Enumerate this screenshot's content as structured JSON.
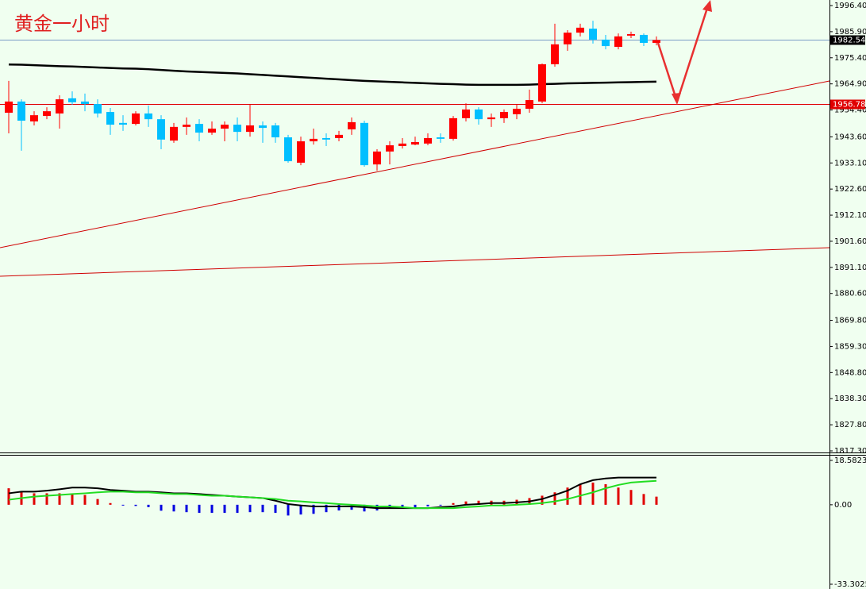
{
  "chart_data": [
    {
      "type": "candlestick",
      "title": "黄金一小时",
      "ylim": [
        1817.3,
        1996.4
      ],
      "yticks": [
        {
          "value": 1996.4,
          "label": "1996.40"
        },
        {
          "value": 1985.9,
          "label": "1985.90"
        },
        {
          "value": 1975.4,
          "label": "1975.40"
        },
        {
          "value": 1964.9,
          "label": "1964.90"
        },
        {
          "value": 1954.4,
          "label": "1954.40"
        },
        {
          "value": 1943.6,
          "label": "1943.60"
        },
        {
          "value": 1933.1,
          "label": "1933.10"
        },
        {
          "value": 1922.6,
          "label": "1922.60"
        },
        {
          "value": 1912.1,
          "label": "1912.10"
        },
        {
          "value": 1901.6,
          "label": "1901.60"
        },
        {
          "value": 1891.1,
          "label": "1891.10"
        },
        {
          "value": 1880.6,
          "label": "1880.60"
        },
        {
          "value": 1869.8,
          "label": "1869.80"
        },
        {
          "value": 1859.3,
          "label": "1859.30"
        },
        {
          "value": 1848.8,
          "label": "1848.80"
        },
        {
          "value": 1838.3,
          "label": "1838.30"
        },
        {
          "value": 1827.8,
          "label": "1827.80"
        },
        {
          "value": 1817.3,
          "label": "1817.30"
        }
      ],
      "up_color": "#ff0000",
      "down_color": "#00bfff",
      "open": [
        1953.3,
        1957.8,
        1949.8,
        1952.0,
        1953.0,
        1959.1,
        1957.8,
        1956.8,
        1953.6,
        1949.2,
        1948.8,
        1953.0,
        1950.7,
        1942.1,
        1947.6,
        1948.8,
        1945.3,
        1946.9,
        1948.5,
        1945.6,
        1948.2,
        1948.2,
        1943.4,
        1933.2,
        1941.8,
        1943.1,
        1943.1,
        1946.6,
        1949.2,
        1932.5,
        1937.7,
        1939.9,
        1940.5,
        1940.9,
        1943.4,
        1942.8,
        1951.1,
        1954.6,
        1950.7,
        1951.1,
        1952.7,
        1954.9,
        1957.8,
        1972.8,
        1980.8,
        1985.5,
        1987.1,
        1982.7,
        1979.8,
        1984.3,
        1984.6,
        1981.4
      ],
      "high": [
        1966.1,
        1958.7,
        1953.9,
        1955.5,
        1960.3,
        1961.9,
        1961.0,
        1958.7,
        1955.2,
        1952.3,
        1953.9,
        1956.2,
        1952.3,
        1949.2,
        1951.4,
        1950.7,
        1949.8,
        1949.8,
        1951.4,
        1956.5,
        1949.8,
        1949.2,
        1944.4,
        1943.7,
        1946.9,
        1945.0,
        1946.0,
        1951.4,
        1950.1,
        1938.6,
        1941.8,
        1943.1,
        1943.7,
        1945.0,
        1945.0,
        1952.0,
        1957.1,
        1955.5,
        1953.0,
        1954.6,
        1956.5,
        1962.6,
        1973.1,
        1989.1,
        1986.5,
        1989.1,
        1990.3,
        1984.6,
        1985.2,
        1985.9,
        1985.2,
        1984.0
      ],
      "low": [
        1945.0,
        1938.0,
        1948.2,
        1950.7,
        1946.9,
        1956.5,
        1953.9,
        1951.4,
        1944.4,
        1946.0,
        1948.2,
        1947.6,
        1938.6,
        1941.2,
        1944.4,
        1941.8,
        1944.4,
        1941.8,
        1941.8,
        1943.7,
        1941.2,
        1941.2,
        1933.2,
        1932.2,
        1940.5,
        1939.9,
        1941.8,
        1944.4,
        1931.6,
        1930.0,
        1932.5,
        1938.9,
        1940.2,
        1940.2,
        1941.2,
        1942.1,
        1949.8,
        1948.5,
        1947.6,
        1949.2,
        1950.7,
        1953.3,
        1957.1,
        1971.8,
        1978.2,
        1984.0,
        1981.1,
        1978.8,
        1978.8,
        1983.3,
        1980.1,
        1980.4
      ],
      "close": [
        1957.8,
        1950.1,
        1952.3,
        1953.9,
        1958.7,
        1957.5,
        1956.8,
        1953.0,
        1948.5,
        1948.5,
        1953.0,
        1950.7,
        1942.5,
        1947.6,
        1948.5,
        1945.3,
        1946.9,
        1948.5,
        1945.6,
        1948.2,
        1947.2,
        1943.4,
        1933.8,
        1941.8,
        1942.8,
        1942.5,
        1944.4,
        1949.5,
        1932.2,
        1937.7,
        1940.2,
        1940.9,
        1941.5,
        1943.1,
        1942.8,
        1951.1,
        1954.6,
        1950.7,
        1951.4,
        1953.6,
        1954.9,
        1958.4,
        1972.8,
        1980.8,
        1985.5,
        1987.5,
        1982.7,
        1980.1,
        1984.0,
        1984.9,
        1981.4,
        1982.54
      ],
      "ma": {
        "color": "#000000",
        "values": [
          1972.7,
          1972.6,
          1972.4,
          1972.2,
          1972.0,
          1971.9,
          1971.7,
          1971.5,
          1971.3,
          1971.1,
          1971.0,
          1970.8,
          1970.5,
          1970.2,
          1969.9,
          1969.7,
          1969.5,
          1969.3,
          1969.1,
          1968.8,
          1968.5,
          1968.2,
          1967.9,
          1967.6,
          1967.3,
          1967.0,
          1966.7,
          1966.4,
          1966.1,
          1965.9,
          1965.7,
          1965.5,
          1965.3,
          1965.1,
          1964.9,
          1964.8,
          1964.6,
          1964.5,
          1964.5,
          1964.5,
          1964.5,
          1964.6,
          1964.8,
          1964.9,
          1965.1,
          1965.2,
          1965.3,
          1965.4,
          1965.5,
          1965.6,
          1965.7,
          1965.8
        ]
      },
      "price_lines": [
        {
          "value": 1982.54,
          "color": "#7a9cc6",
          "label_color": "#000000"
        },
        {
          "value": 1956.78,
          "color": "#e00000",
          "label_color": "#e00000"
        }
      ]
    },
    {
      "type": "macd",
      "ylim": [
        -33.3025,
        18.5823
      ],
      "yticks": [
        18.5823,
        {
          "value": 0,
          "label": "0.00"
        },
        -33.3025
      ],
      "up_color": "#e00000",
      "down_color": "#0000e0",
      "histogram": [
        6.9,
        5.5,
        4.8,
        4.8,
        4.8,
        4.5,
        4.1,
        2.4,
        0.7,
        -0.3,
        -0.5,
        -1.0,
        -2.5,
        -2.8,
        -3.1,
        -3.4,
        -3.4,
        -3.4,
        -3.4,
        -3.1,
        -3.1,
        -3.4,
        -4.5,
        -4.1,
        -3.8,
        -3.1,
        -2.4,
        -2.1,
        -2.8,
        -2.4,
        -1.7,
        -1.7,
        -1.4,
        -0.7,
        -0.3,
        0.7,
        1.4,
        1.7,
        1.7,
        1.7,
        2.1,
        2.8,
        3.8,
        5.2,
        7.2,
        8.6,
        9.3,
        8.6,
        7.2,
        6.2,
        4.5,
        3.4
      ],
      "lines": [
        {
          "color": "#000000",
          "values": [
            4.8,
            5.5,
            5.5,
            5.9,
            6.5,
            7.2,
            7.2,
            6.9,
            6.2,
            5.9,
            5.5,
            5.5,
            5.2,
            4.8,
            4.8,
            4.5,
            4.1,
            3.8,
            3.4,
            3.1,
            2.8,
            1.7,
            0.3,
            -0.3,
            -0.7,
            -0.7,
            -0.7,
            -0.7,
            -1.0,
            -1.4,
            -1.4,
            -1.4,
            -1.4,
            -1.4,
            -1.0,
            -0.7,
            0,
            0.3,
            0.7,
            0.7,
            1.0,
            1.4,
            2.4,
            4.1,
            5.9,
            8.6,
            10.3,
            11.0,
            11.4,
            11.4,
            11.4,
            11.4
          ]
        },
        {
          "color": "#22dd22",
          "values": [
            2.1,
            2.8,
            3.4,
            3.8,
            4.1,
            4.5,
            4.8,
            5.2,
            5.5,
            5.5,
            5.2,
            5.2,
            4.8,
            4.5,
            4.5,
            4.1,
            3.8,
            3.8,
            3.4,
            3.1,
            2.8,
            2.4,
            1.7,
            1.4,
            1.0,
            0.7,
            0.3,
            0,
            -0.3,
            -0.7,
            -0.7,
            -1.0,
            -1.4,
            -1.4,
            -1.4,
            -1.4,
            -1.0,
            -0.7,
            -0.3,
            -0.3,
            0,
            0.3,
            0.7,
            1.4,
            2.4,
            3.8,
            5.2,
            6.9,
            8.3,
            9.3,
            9.7,
            10.0
          ]
        }
      ]
    }
  ]
}
